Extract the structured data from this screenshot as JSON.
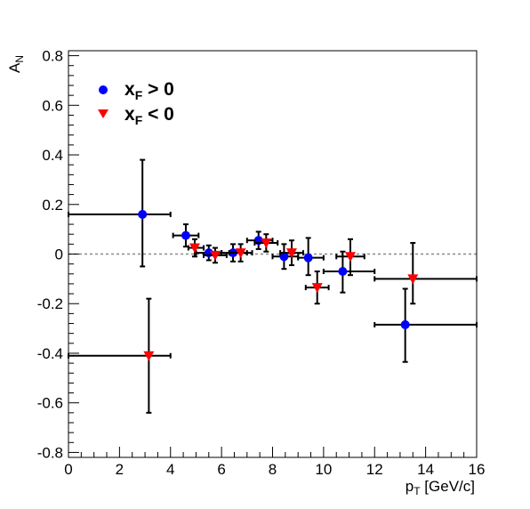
{
  "chart_data": {
    "type": "scatter",
    "title": "",
    "xlabel": {
      "main": "p",
      "sub": "T",
      "unit": " [GeV/c]"
    },
    "ylabel": {
      "main": "A",
      "sub": "N"
    },
    "xlim": [
      0,
      16
    ],
    "ylim": [
      -0.82,
      0.82
    ],
    "x_ticks": [
      {
        "value": 0,
        "label": "0"
      },
      {
        "value": 2,
        "label": "2"
      },
      {
        "value": 4,
        "label": "4"
      },
      {
        "value": 6,
        "label": "6"
      },
      {
        "value": 8,
        "label": "8"
      },
      {
        "value": 10,
        "label": "10"
      },
      {
        "value": 12,
        "label": "12"
      },
      {
        "value": 14,
        "label": "14"
      },
      {
        "value": 16,
        "label": "16"
      }
    ],
    "y_ticks": [
      {
        "value": -0.8,
        "label": "-0.8"
      },
      {
        "value": -0.6,
        "label": "-0.6"
      },
      {
        "value": -0.4,
        "label": "-0.4"
      },
      {
        "value": -0.2,
        "label": "-0.2"
      },
      {
        "value": 0,
        "label": "0"
      },
      {
        "value": 0.2,
        "label": "0.2"
      },
      {
        "value": 0.4,
        "label": "0.4"
      },
      {
        "value": 0.6,
        "label": "0.6"
      },
      {
        "value": 0.8,
        "label": "0.8"
      }
    ],
    "reference_line": {
      "y": 0,
      "style": "dotted",
      "color": "#888888"
    },
    "grid": false,
    "legend_position": "top-left",
    "series": [
      {
        "name": {
          "main": "x",
          "sub": "F",
          "rest": " > 0"
        },
        "marker": "circle",
        "color": "#0000ff",
        "points": [
          {
            "x": 2.9,
            "y": 0.16,
            "xlo": 0.0,
            "xhi": 4.0,
            "ylo": -0.05,
            "yhi": 0.38
          },
          {
            "x": 4.6,
            "y": 0.075,
            "xlo": 4.1,
            "xhi": 5.1,
            "ylo": 0.03,
            "yhi": 0.12
          },
          {
            "x": 5.5,
            "y": 0.005,
            "xlo": 5.0,
            "xhi": 6.0,
            "ylo": -0.025,
            "yhi": 0.035
          },
          {
            "x": 6.45,
            "y": 0.005,
            "xlo": 6.0,
            "xhi": 7.0,
            "ylo": -0.03,
            "yhi": 0.04
          },
          {
            "x": 7.45,
            "y": 0.055,
            "xlo": 7.0,
            "xhi": 8.0,
            "ylo": 0.02,
            "yhi": 0.09
          },
          {
            "x": 8.45,
            "y": -0.01,
            "xlo": 8.0,
            "xhi": 9.0,
            "ylo": -0.06,
            "yhi": 0.04
          },
          {
            "x": 9.4,
            "y": -0.015,
            "xlo": 9.0,
            "xhi": 10.0,
            "ylo": -0.085,
            "yhi": 0.065
          },
          {
            "x": 10.75,
            "y": -0.07,
            "xlo": 10.0,
            "xhi": 12.0,
            "ylo": -0.155,
            "yhi": 0.01
          },
          {
            "x": 13.2,
            "y": -0.285,
            "xlo": 12.0,
            "xhi": 16.0,
            "ylo": -0.435,
            "yhi": -0.14
          }
        ]
      },
      {
        "name": {
          "main": "x",
          "sub": "F",
          "rest": " < 0"
        },
        "marker": "triangle-down",
        "color": "#ff0000",
        "points": [
          {
            "x": 3.15,
            "y": -0.41,
            "xlo": 0.0,
            "xhi": 4.0,
            "ylo": -0.64,
            "yhi": -0.18
          },
          {
            "x": 4.95,
            "y": 0.025,
            "xlo": 4.7,
            "xhi": 5.3,
            "ylo": -0.01,
            "yhi": 0.06
          },
          {
            "x": 5.75,
            "y": -0.005,
            "xlo": 5.3,
            "xhi": 6.2,
            "ylo": -0.035,
            "yhi": 0.025
          },
          {
            "x": 6.75,
            "y": 0.005,
            "xlo": 6.3,
            "xhi": 7.2,
            "ylo": -0.03,
            "yhi": 0.04
          },
          {
            "x": 7.75,
            "y": 0.045,
            "xlo": 7.3,
            "xhi": 8.2,
            "ylo": 0.01,
            "yhi": 0.08
          },
          {
            "x": 8.75,
            "y": 0.005,
            "xlo": 8.3,
            "xhi": 9.2,
            "ylo": -0.045,
            "yhi": 0.055
          },
          {
            "x": 9.75,
            "y": -0.135,
            "xlo": 9.3,
            "xhi": 10.2,
            "ylo": -0.2,
            "yhi": -0.07
          },
          {
            "x": 11.05,
            "y": -0.01,
            "xlo": 10.5,
            "xhi": 11.6,
            "ylo": -0.085,
            "yhi": 0.06
          },
          {
            "x": 13.5,
            "y": -0.1,
            "xlo": 12.0,
            "xhi": 16.0,
            "ylo": -0.2,
            "yhi": 0.045
          }
        ]
      }
    ]
  }
}
